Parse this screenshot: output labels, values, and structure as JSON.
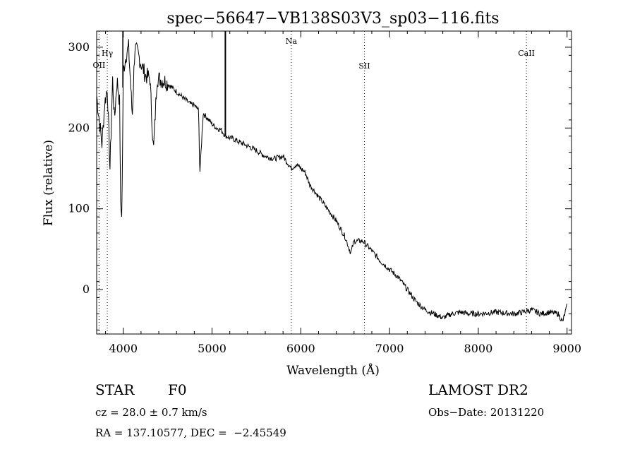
{
  "chart_data": {
    "type": "line",
    "title": "spec−56647−VB138S03V3_sp03−116.fits",
    "xlabel": "Wavelength (Å)",
    "ylabel": "Flux (relative)",
    "xlim": [
      3700,
      9050
    ],
    "ylim": [
      -55,
      320
    ],
    "x_ticks": [
      4000,
      5000,
      6000,
      7000,
      8000,
      9000
    ],
    "y_ticks": [
      0,
      100,
      200,
      300
    ],
    "grid": false,
    "series": [
      {
        "x": [
          3700,
          3740,
          3760,
          3790,
          3820,
          3850,
          3880,
          3900,
          3930,
          3960,
          3970,
          3985,
          4000,
          4030,
          4060,
          4101,
          4130,
          4170,
          4200,
          4250,
          4300,
          4340,
          4380,
          4420,
          4470,
          4500,
          4550,
          4600,
          4650,
          4700,
          4750,
          4800,
          4850,
          4861,
          4900,
          4950,
          5000,
          5050,
          5100,
          5140,
          5160,
          5200,
          5250,
          5300,
          5400,
          5500,
          5600,
          5700,
          5800,
          5893,
          5950,
          6000,
          6050,
          6100,
          6200,
          6300,
          6400,
          6500,
          6563,
          6600,
          6700,
          6800,
          6900,
          7000,
          7100,
          7200,
          7300,
          7400,
          7500,
          7600,
          7700,
          7800,
          7900,
          8000,
          8200,
          8400,
          8500,
          8600,
          8700,
          8800,
          8900,
          8950,
          9000
        ],
        "y": [
          240,
          200,
          180,
          230,
          250,
          150,
          260,
          210,
          260,
          230,
          100,
          95,
          270,
          290,
          300,
          215,
          300,
          290,
          280,
          265,
          262,
          170,
          262,
          260,
          258,
          255,
          250,
          245,
          240,
          235,
          230,
          228,
          222,
          140,
          218,
          212,
          205,
          200,
          198,
          192,
          190,
          188,
          186,
          183,
          178,
          172,
          165,
          162,
          165,
          150,
          155,
          150,
          145,
          130,
          115,
          100,
          85,
          65,
          45,
          60,
          60,
          48,
          35,
          25,
          15,
          0,
          -15,
          -25,
          -30,
          -35,
          -30,
          -28,
          -30,
          -30,
          -28,
          -30,
          -28,
          -25,
          -30,
          -28,
          -30,
          -40,
          -20
        ]
      }
    ],
    "annotations": [
      {
        "label": "OII",
        "x": 3727
      },
      {
        "label": "Hγ",
        "x": 3820
      },
      {
        "label": "Na",
        "x": 5893
      },
      {
        "label": "SII",
        "x": 6717
      },
      {
        "label": "CaII",
        "x": 8542
      }
    ]
  },
  "info": {
    "class": "STAR",
    "subclass": "F0",
    "survey": "LAMOST DR2",
    "cz": "cz = 28.0 ± 0.7 km/s",
    "obs_date": "Obs−Date: 20131220",
    "radec": "RA = 137.10577, DEC =  −2.45549"
  }
}
